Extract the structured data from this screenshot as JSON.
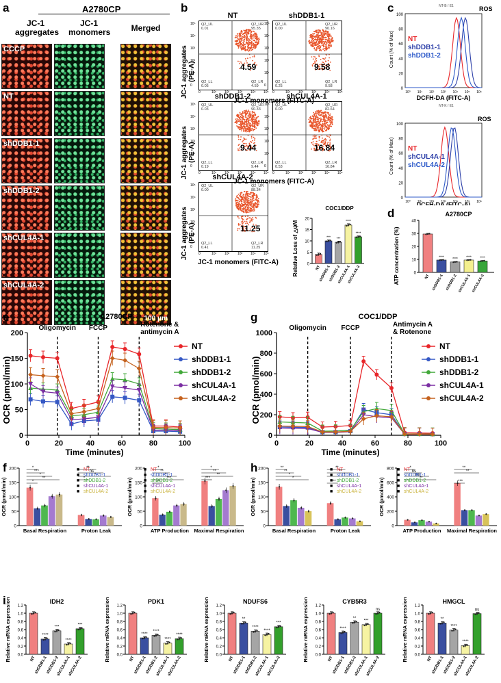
{
  "panels": {
    "a": {
      "label": "a",
      "title": "A2780CP",
      "columns": [
        "JC-1\naggregates",
        "JC-1\nmonomers",
        "Merged"
      ],
      "rows": [
        "CCCP",
        "NT",
        "shDDB1-1",
        "shDDB1-2",
        "shCUL4A-1",
        "shCUL4A-2"
      ],
      "scalebar": "100 μm"
    },
    "b": {
      "label": "b",
      "ylabel": "JC-1 aggregates (PE-A)",
      "xlabel": "JC-1 monomers (FITC-A)",
      "yticks": [
        "10⁵",
        "10⁴",
        "10³",
        "10²",
        "10¹",
        "0"
      ],
      "xticks": [
        "0",
        "10¹",
        "10²",
        "10³",
        "10⁴",
        "10⁵"
      ],
      "plots": [
        {
          "name": "NT",
          "ul": [
            "Q2_UL",
            "0.01"
          ],
          "ur": [
            "Q2_UR",
            "95.35"
          ],
          "ll": [
            "Q2_LL",
            "0.05"
          ],
          "lr": [
            "Q2_LR",
            "4.59"
          ],
          "big": "4.59"
        },
        {
          "name": "shDDB1-1",
          "ul": [
            "Q2_UL",
            "0.00"
          ],
          "ur": [
            "Q2_UR",
            "90.16"
          ],
          "ll": [
            "Q2_LL",
            "0.25"
          ],
          "lr": [
            "Q2_LR",
            "9.58"
          ],
          "big": "9.58"
        },
        {
          "name": "shDDB1-2",
          "ul": [
            "Q2_UL",
            "0.03"
          ],
          "ur": [
            "Q2_UR",
            "90.33"
          ],
          "ll": [
            "Q2_LL",
            "0.19"
          ],
          "lr": [
            "Q2_LR",
            "9.44"
          ],
          "big": "9.44"
        },
        {
          "name": "shCUL4A-1",
          "ul": [
            "Q2_UL",
            "0.00"
          ],
          "ur": [
            "Q2_UR",
            "82.64"
          ],
          "ll": [
            "Q2_LL",
            "0.53"
          ],
          "lr": [
            "Q2_LR",
            "16.84"
          ],
          "big": "16.84"
        },
        {
          "name": "shCUL4A-2",
          "ul": [
            "Q2_UL",
            "0.00"
          ],
          "ur": [
            "Q2_UR",
            "88.34"
          ],
          "ll": [
            "Q2_LL",
            "0.41"
          ],
          "lr": [
            "Q2_LR",
            "11.25"
          ],
          "big": "11.25"
        }
      ],
      "bar_title": "COC1/DDP",
      "bar_ylabel": "Relative Loss of △ψM"
    },
    "c": {
      "label": "c",
      "ylabel": "Count (% of Max)",
      "xlabel": "DCFH-DA (FITC-A)",
      "title1": "ROS",
      "title2": "ROS",
      "header1": "NT-B / E1",
      "header2": "NT-K / E1",
      "legend1": [
        "NT",
        "shDDB1-1",
        "shDDB1-2"
      ],
      "legend2": [
        "NT",
        "shCUL4A-1",
        "shCUL4A-2"
      ],
      "yticks": [
        "100",
        "80",
        "60",
        "40",
        "20",
        "0"
      ],
      "xticks": [
        "10⁰",
        "10¹",
        "10²",
        "10³",
        "10⁴",
        "10⁵",
        "10⁶"
      ]
    },
    "d": {
      "label": "d",
      "title": "A2780CP",
      "ylabel": "ATP concentration\n(%)"
    },
    "e": {
      "label": "e",
      "title": "A2780CP",
      "ylabel": "OCR (pmol/min)",
      "xlabel": "Time (minutes)",
      "markers": [
        "Oligomycin",
        "FCCP",
        "Rotenone &\nantimycin A"
      ]
    },
    "g": {
      "label": "g",
      "title": "COC1/DDP",
      "ylabel": "OCR (pmol/min)",
      "xlabel": "Time (minutes)",
      "markers": [
        "Oligomycin",
        "FCCP",
        "Antimycin A\n& Rotenone"
      ]
    },
    "f": {
      "label": "f",
      "ylabel": "OCR (pmol/min)"
    },
    "h": {
      "label": "h",
      "ylabel": "OCR (pmol/min)"
    },
    "i": {
      "label": "i",
      "ylabel": "Relative mRNA expression"
    }
  },
  "groups": [
    "NT",
    "shDDB1-1",
    "shDDB1-2",
    "shCUL4A-1",
    "shCUL4A-2"
  ],
  "colors": {
    "bars": [
      "#f08080",
      "#3a4fa0",
      "#a5a5a5",
      "#f6f3a2",
      "#33a02c"
    ],
    "bars_d": [
      "#f08080",
      "#3a4fa0",
      "#9f9f9f",
      "#f3ef8e",
      "#38a63a"
    ],
    "lines": [
      "#e8262a",
      "#3558c5",
      "#42a83a",
      "#7b2fa3",
      "#c5621e"
    ],
    "legend_f": [
      "#e8262a",
      "#3558c5",
      "#42a83a",
      "#7b2fa3",
      "#c9b23a"
    ],
    "bars_f": [
      "#f08080",
      "#3a4fa0",
      "#4fb84f",
      "#a47ad0",
      "#c9b98a"
    ],
    "bars_h": [
      "#f08080",
      "#3a4fa0",
      "#4fb84f",
      "#a47ad0",
      "#d8c35a"
    ]
  },
  "chart_data": [
    {
      "type": "bar",
      "id": "b_bar",
      "title": "COC1/DDP",
      "ylabel": "Relative Loss of △ψM",
      "categories": [
        "NT",
        "shDDB1-1",
        "shDDB1-2",
        "shCUL4A-1",
        "shCUL4A-2"
      ],
      "values": [
        4,
        10,
        9.4,
        17,
        11.8
      ],
      "errors": [
        0.6,
        0.4,
        0.5,
        0.6,
        0.4
      ],
      "sig": [
        "",
        "***",
        "***",
        "****",
        "****"
      ],
      "ylim": [
        0,
        20
      ],
      "yticks": [
        "0",
        "5",
        "10",
        "15",
        "20"
      ]
    },
    {
      "type": "bar",
      "id": "d",
      "title": "A2780CP",
      "ylabel": "ATP concentration (%)",
      "categories": [
        "NT",
        "shDDB1-1",
        "shDDB1-2",
        "shCUL4A-1",
        "shCUL4A-2"
      ],
      "values": [
        29.5,
        9.5,
        8.0,
        9.5,
        8.8
      ],
      "errors": [
        0.5,
        0.3,
        0.3,
        0.3,
        0.3
      ],
      "sig": [
        "",
        "****",
        "****",
        "****",
        "****"
      ],
      "ylim": [
        0,
        40
      ],
      "yticks": [
        "0",
        "10",
        "20",
        "30",
        "40"
      ]
    },
    {
      "type": "line",
      "id": "e",
      "title": "A2780CP",
      "xlabel": "Time (minutes)",
      "ylabel": "OCR (pmol/min)",
      "x": [
        2,
        10,
        19,
        28,
        36,
        45,
        54,
        62,
        71,
        80,
        88,
        97
      ],
      "xlim": [
        0,
        100
      ],
      "ylim": [
        0,
        200
      ],
      "xticks": [
        "0",
        "20",
        "40",
        "60",
        "80",
        "100"
      ],
      "yticks": [
        "0",
        "50",
        "100",
        "150",
        "200"
      ],
      "injections": [
        19,
        45,
        71
      ],
      "series": [
        {
          "name": "NT",
          "values": [
            155,
            152,
            150,
            52,
            58,
            65,
            172,
            168,
            158,
            18,
            18,
            16
          ],
          "err": 12
        },
        {
          "name": "shDDB1-1",
          "values": [
            70,
            66,
            65,
            22,
            28,
            30,
            75,
            73,
            68,
            8,
            8,
            7
          ],
          "err": 12
        },
        {
          "name": "shDDB1-2",
          "values": [
            92,
            90,
            88,
            38,
            40,
            45,
            110,
            108,
            100,
            13,
            12,
            11
          ],
          "err": 12
        },
        {
          "name": "shCUL4A-1",
          "values": [
            100,
            85,
            82,
            30,
            32,
            35,
            95,
            92,
            88,
            10,
            10,
            9
          ],
          "err": 12
        },
        {
          "name": "shCUL4A-2",
          "values": [
            118,
            116,
            114,
            42,
            46,
            52,
            150,
            146,
            130,
            15,
            15,
            14
          ],
          "err": 14
        }
      ]
    },
    {
      "type": "line",
      "id": "g",
      "title": "COC1/DDP",
      "xlabel": "Time (minutes)",
      "ylabel": "OCR (pmol/min)",
      "x": [
        2,
        10,
        19,
        28,
        36,
        45,
        53,
        61,
        70,
        78,
        87,
        95
      ],
      "xlim": [
        0,
        100
      ],
      "ylim": [
        0,
        1000
      ],
      "xticks": [
        "0",
        "20",
        "40",
        "60",
        "80",
        "100"
      ],
      "yticks": [
        "0",
        "200",
        "400",
        "600",
        "800",
        "1000"
      ],
      "injections": [
        19,
        45,
        70
      ],
      "series": [
        {
          "name": "NT",
          "values": [
            180,
            170,
            175,
            80,
            85,
            95,
            720,
            590,
            460,
            25,
            22,
            20
          ],
          "err": 50
        },
        {
          "name": "shDDB1-1",
          "values": [
            80,
            78,
            75,
            30,
            30,
            40,
            250,
            220,
            200,
            12,
            12,
            10
          ],
          "err": 60
        },
        {
          "name": "shDDB1-2",
          "values": [
            130,
            125,
            120,
            40,
            42,
            50,
            230,
            260,
            240,
            14,
            13,
            12
          ],
          "err": 60
        },
        {
          "name": "shCUL4A-1",
          "values": [
            70,
            68,
            66,
            28,
            28,
            35,
            200,
            180,
            170,
            10,
            10,
            9
          ],
          "err": 60
        },
        {
          "name": "shCUL4A-2",
          "values": [
            90,
            88,
            85,
            32,
            32,
            38,
            160,
            190,
            180,
            12,
            12,
            10
          ],
          "err": 60
        }
      ]
    },
    {
      "type": "bar",
      "id": "f1",
      "ylabel": "OCR (pmol/min)",
      "groups": [
        "Basal Respiration",
        "Proton Leak"
      ],
      "series_names": [
        "NT",
        "shDDB1-1",
        "shDDB1-2",
        "shCUL4A-1",
        "shCUL4A-2"
      ],
      "values": [
        [
          132,
          60,
          70,
          102,
          108
        ],
        [
          37,
          23,
          22,
          35,
          30
        ]
      ],
      "ylim": [
        0,
        200
      ],
      "yticks": [
        "0",
        "50",
        "100",
        "150",
        "200"
      ],
      "sig_labels": [
        "*",
        "***",
        "*",
        "**",
        "*",
        "**",
        "ns",
        "*",
        "*"
      ]
    },
    {
      "type": "bar",
      "id": "f2",
      "ylabel": "OCR (pmol/min)",
      "groups": [
        "ATP Production",
        "Maximal Respiration"
      ],
      "series_names": [
        "NT",
        "shDDB1-1",
        "shDDB1-2",
        "shCUL4A-1",
        "shCUL4A-2"
      ],
      "values": [
        [
          95,
          38,
          48,
          70,
          75
        ],
        [
          155,
          68,
          93,
          123,
          138
        ]
      ],
      "ylim": [
        0,
        200
      ],
      "yticks": [
        "0",
        "50",
        "100",
        "150",
        "200"
      ],
      "sig_labels": [
        "*",
        "**",
        "*",
        "***",
        "**",
        "*",
        "**",
        "**",
        "***"
      ]
    },
    {
      "type": "bar",
      "id": "h1",
      "ylabel": "OCR (pmol/min)",
      "groups": [
        "Basal Respiration",
        "Proton Leak"
      ],
      "series_names": [
        "NT",
        "shDDB1-1",
        "shDDB1-2",
        "shCUL4A-1",
        "shCUL4A-2"
      ],
      "values": [
        [
          135,
          68,
          88,
          62,
          50
        ],
        [
          78,
          22,
          28,
          25,
          15
        ]
      ],
      "ylim": [
        0,
        200
      ],
      "yticks": [
        "0",
        "50",
        "100",
        "150",
        "200"
      ],
      "sig_labels": [
        "**",
        "**",
        "*",
        "*",
        "***",
        "**",
        "**",
        "*"
      ]
    },
    {
      "type": "bar",
      "id": "h2",
      "ylabel": "OCR (pmol/min)",
      "groups": [
        "ATP Production",
        "Maximal Respiration"
      ],
      "series_names": [
        "NT",
        "shDDB1-1",
        "shDDB1-2",
        "shCUL4A-1",
        "shCUL4A-2"
      ],
      "values": [
        [
          80,
          45,
          75,
          55,
          30
        ],
        [
          590,
          215,
          215,
          140,
          160
        ]
      ],
      "ylim": [
        0,
        800
      ],
      "yticks": [
        "0",
        "200",
        "400",
        "600",
        "800"
      ],
      "sig_labels": [
        "*",
        "ns",
        "ns",
        "**",
        "***",
        "**",
        "**"
      ]
    },
    {
      "type": "bar",
      "id": "i_IDH2",
      "title": "IDH2",
      "ylabel": "Relative mRNA expression",
      "categories": [
        "NT",
        "shDDB1-1",
        "shDDB1-2",
        "shCUL4A-1",
        "shCUL4A-2"
      ],
      "values": [
        1.0,
        0.37,
        0.57,
        0.25,
        0.62
      ],
      "sig": [
        "",
        "****",
        "***",
        "****",
        "***"
      ],
      "ylim": [
        0,
        1.2
      ],
      "yticks": [
        "0.0",
        "0.2",
        "0.4",
        "0.6",
        "0.8",
        "1.0",
        "1.2"
      ]
    },
    {
      "type": "bar",
      "id": "i_PDK1",
      "title": "PDK1",
      "ylabel": "Relative mRNA expression",
      "categories": [
        "NT",
        "shDDB1-1",
        "shDDB1-2",
        "shCUL4A-1",
        "shCUL4A-2"
      ],
      "values": [
        1.0,
        0.4,
        0.46,
        0.27,
        0.38
      ],
      "sig": [
        "",
        "****",
        "****",
        "****",
        "****"
      ],
      "ylim": [
        0,
        1.2
      ],
      "yticks": [
        "0.0",
        "0.2",
        "0.4",
        "0.6",
        "0.8",
        "1.0",
        "1.2"
      ]
    },
    {
      "type": "bar",
      "id": "i_NDUFS6",
      "title": "NDUFS6",
      "ylabel": "Relative mRNA expression",
      "categories": [
        "NT",
        "shDDB1-1",
        "shDDB1-2",
        "shCUL4A-1",
        "shCUL4A-2"
      ],
      "values": [
        1.0,
        0.76,
        0.56,
        0.48,
        0.67
      ],
      "sig": [
        "",
        "**",
        "****",
        "****",
        "***"
      ],
      "ylim": [
        0,
        1.2
      ],
      "yticks": [
        "0.0",
        "0.2",
        "0.4",
        "0.6",
        "0.8",
        "1.0",
        "1.2"
      ]
    },
    {
      "type": "bar",
      "id": "i_CYB5R3",
      "title": "CYB5R3",
      "ylabel": "Relative mRNA expression",
      "categories": [
        "NT",
        "shDDB1-1",
        "shDDB1-2",
        "shCUL4A-1",
        "shCUL4A-2"
      ],
      "values": [
        1.0,
        0.53,
        0.78,
        0.72,
        1.0
      ],
      "sig": [
        "",
        "****",
        "**",
        "***",
        "ns"
      ],
      "ylim": [
        0,
        1.2
      ],
      "yticks": [
        "0.0",
        "0.2",
        "0.4",
        "0.6",
        "0.8",
        "1.0",
        "1.2"
      ]
    },
    {
      "type": "bar",
      "id": "i_HMGCL",
      "title": "HMGCL",
      "ylabel": "Relative mRNA expression",
      "categories": [
        "NT",
        "shDDB1-1",
        "shDDB1-2",
        "shCUL4A-1",
        "shCUL4A-2"
      ],
      "values": [
        1.0,
        0.76,
        0.59,
        0.21,
        0.99
      ],
      "sig": [
        "",
        "**",
        "****",
        "****",
        "ns"
      ],
      "ylim": [
        0,
        1.2
      ],
      "yticks": [
        "0.0",
        "0.2",
        "0.4",
        "0.6",
        "0.8",
        "1.0",
        "1.2"
      ]
    }
  ]
}
